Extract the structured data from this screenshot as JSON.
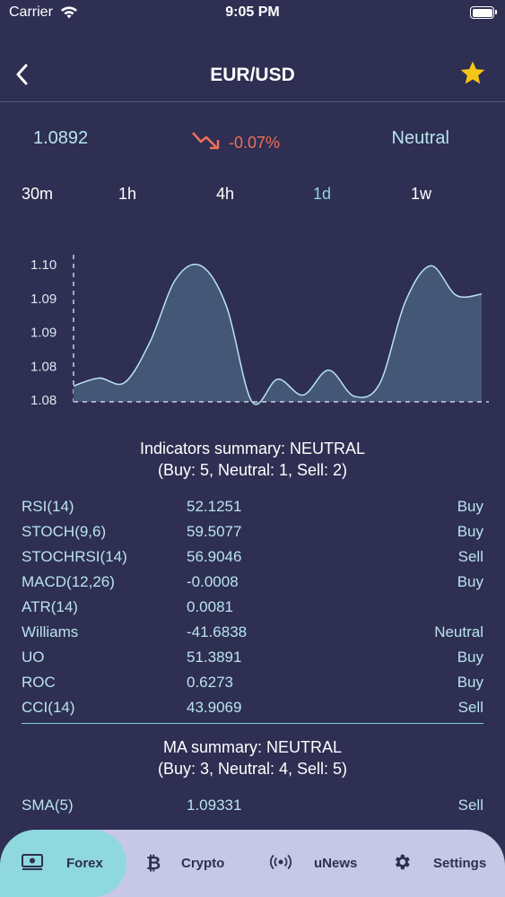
{
  "status": {
    "carrier": "Carrier",
    "time": "9:05 PM"
  },
  "nav": {
    "title": "EUR/USD",
    "back_icon": "chevron-left-icon",
    "favorite_icon": "star-icon"
  },
  "colors": {
    "background": "#2e2f52",
    "accent": "#b9e3ee",
    "negative": "#ee6f5c",
    "star": "#f5c518",
    "tabbar": "#c7c8e6",
    "tab_active": "#8ed8de"
  },
  "quote": {
    "price": "1.0892",
    "change": "-0.07%",
    "signal": "Neutral"
  },
  "periods": [
    "30m",
    "1h",
    "4h",
    "1d",
    "1w"
  ],
  "selected_period": "1d",
  "chart_data": {
    "type": "area",
    "y_tick_labels": [
      "1.10",
      "1.09",
      "1.09",
      "1.08",
      "1.08"
    ],
    "values": [
      1.0794,
      1.0801,
      1.0797,
      1.0833,
      1.0888,
      1.09,
      1.0864,
      1.078,
      1.08,
      1.0786,
      1.0808,
      1.0785,
      1.0796,
      1.0868,
      1.09,
      1.0874,
      1.0875
    ],
    "baseline": 1.078,
    "ylim": [
      1.078,
      1.0905
    ],
    "xlabel": "",
    "ylabel": ""
  },
  "indicators": {
    "summary_line1": "Indicators summary: NEUTRAL",
    "summary_line2": "(Buy: 5, Neutral: 1, Sell: 2)",
    "rows": [
      {
        "name": "RSI(14)",
        "value": "52.1251",
        "action": "Buy"
      },
      {
        "name": "STOCH(9,6)",
        "value": "59.5077",
        "action": "Buy"
      },
      {
        "name": "STOCHRSI(14)",
        "value": "56.9046",
        "action": "Sell"
      },
      {
        "name": "MACD(12,26)",
        "value": "-0.0008",
        "action": "Buy"
      },
      {
        "name": "ATR(14)",
        "value": "0.0081",
        "action": ""
      },
      {
        "name": "Williams",
        "value": "-41.6838",
        "action": "Neutral"
      },
      {
        "name": "UO",
        "value": "51.3891",
        "action": "Buy"
      },
      {
        "name": "ROC",
        "value": "0.6273",
        "action": "Buy"
      },
      {
        "name": "CCI(14)",
        "value": "43.9069",
        "action": "Sell"
      }
    ]
  },
  "ma": {
    "summary_line1": "MA summary: NEUTRAL",
    "summary_line2": "(Buy: 3, Neutral: 4, Sell: 5)",
    "rows": [
      {
        "name": "SMA(5)",
        "value": "1.09331",
        "action": "Sell"
      }
    ]
  },
  "tabs": [
    {
      "label": "Forex",
      "icon": "banknote-icon"
    },
    {
      "label": "Crypto",
      "icon": "bitcoin-icon"
    },
    {
      "label": "uNews",
      "icon": "broadcast-icon"
    },
    {
      "label": "Settings",
      "icon": "gear-icon"
    }
  ],
  "active_tab": "Forex"
}
